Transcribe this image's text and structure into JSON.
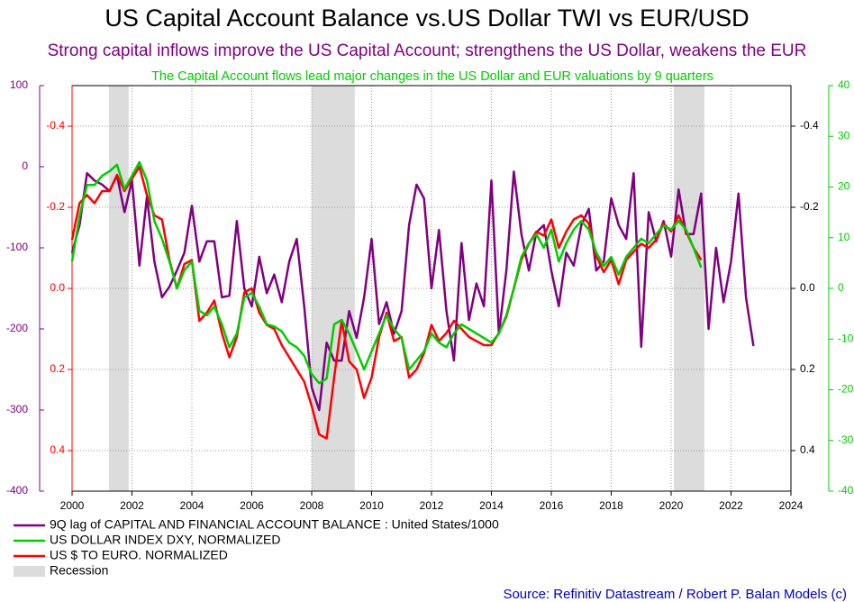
{
  "chart_data": {
    "type": "line",
    "title": "US Capital Account Balance vs.US Dollar TWI vs EUR/USD",
    "subtitle": "Strong capital inflows improve the US Capital Account; strengthens the US Dollar, weakens the EUR",
    "annotation": "The Capital Account flows lead major changes in the US Dollar and EUR valuations by 9 quarters",
    "source": "Source: Refinitiv Datastream / Robert P. Balan Models (c)",
    "xlim": [
      2000,
      2024
    ],
    "xticks": [
      2000,
      2002,
      2004,
      2006,
      2008,
      2010,
      2012,
      2014,
      2016,
      2018,
      2020,
      2022,
      2024
    ],
    "ylim": [
      -400,
      100
    ],
    "yticks": [
      -400,
      -300,
      -200,
      -100,
      0,
      100
    ],
    "y_color": "#800080",
    "y2lim": [
      0.5,
      -0.5
    ],
    "y2ticks": [
      -0.4,
      -0.2,
      {
        "value": 0,
        "label": "0.0"
      },
      0.2,
      0.4
    ],
    "y2_color": "#ff0000",
    "y3lim": [
      0.5,
      -0.5
    ],
    "y3ticks": [
      -0.4,
      -0.2,
      {
        "value": 0,
        "label": "0.0"
      },
      0.2,
      0.4
    ],
    "y3_color": "#000000",
    "y4lim": [
      -40,
      40
    ],
    "y4ticks": [
      -40,
      -30,
      -20,
      -10,
      0,
      10,
      20,
      30,
      40
    ],
    "y4_color": "#00cc00",
    "grid": true,
    "recession_label": "Recession",
    "recession_color": "#dcdcdc",
    "recessions": [
      [
        2001.23,
        2001.89
      ],
      [
        2008.0,
        2009.44
      ],
      [
        2020.09,
        2021.11
      ]
    ],
    "series": [
      {
        "name": "9Q lag of CAPITAL AND FINANCIAL ACCOUNT BALANCE : United States/1000",
        "color": "#800080",
        "axis": "y",
        "x": [
          2000,
          2000.25,
          2000.5,
          2000.75,
          2001,
          2001.25,
          2001.5,
          2001.75,
          2002,
          2002.25,
          2002.5,
          2002.75,
          2003,
          2003.25,
          2003.5,
          2003.75,
          2004,
          2004.25,
          2004.5,
          2004.75,
          2005,
          2005.25,
          2005.5,
          2005.75,
          2006,
          2006.25,
          2006.5,
          2006.75,
          2007,
          2007.25,
          2007.5,
          2007.75,
          2008,
          2008.25,
          2008.5,
          2008.75,
          2009,
          2009.25,
          2009.5,
          2009.75,
          2010,
          2010.25,
          2010.5,
          2010.75,
          2011,
          2011.25,
          2011.5,
          2011.75,
          2012,
          2012.25,
          2012.5,
          2012.75,
          2013,
          2013.25,
          2013.5,
          2013.75,
          2014,
          2014.25,
          2014.5,
          2014.75,
          2015,
          2015.25,
          2015.5,
          2015.75,
          2016,
          2016.25,
          2016.5,
          2016.75,
          2017,
          2017.25,
          2017.5,
          2017.75,
          2018,
          2018.25,
          2018.5,
          2018.75,
          2019,
          2019.25,
          2019.5,
          2019.75,
          2020,
          2020.25,
          2020.5,
          2020.75,
          2021,
          2021.25,
          2021.5,
          2021.75,
          2022,
          2022.25,
          2022.5,
          2022.75
        ],
        "values": [
          -106,
          -72,
          -8,
          -17,
          -22,
          -30,
          -11,
          -56,
          -17,
          -122,
          -37,
          -117,
          -161,
          -148,
          -128,
          -106,
          -48,
          -117,
          -92,
          -92,
          -161,
          -159,
          -67,
          -150,
          -172,
          -111,
          -156,
          -133,
          -167,
          -117,
          -89,
          -172,
          -272,
          -300,
          -217,
          -239,
          -239,
          -178,
          -211,
          -161,
          -89,
          -194,
          -167,
          -206,
          -178,
          -72,
          -22,
          -39,
          -150,
          -78,
          -178,
          -239,
          -94,
          -189,
          -144,
          -172,
          -17,
          -206,
          -128,
          -6,
          -83,
          -128,
          -81,
          -72,
          -128,
          -172,
          -106,
          -122,
          -72,
          -52,
          -128,
          -117,
          -39,
          -72,
          -89,
          -8,
          -222,
          -56,
          -92,
          -67,
          -111,
          -28,
          -83,
          -83,
          -33,
          -200,
          -100,
          -167,
          -117,
          -33,
          -161,
          -221
        ]
      },
      {
        "name": "US DOLLAR INDEX DXY, NORMALIZED",
        "color": "#00cc00",
        "axis": "y4",
        "x": [
          2000,
          2000.25,
          2000.5,
          2000.75,
          2001,
          2001.25,
          2001.5,
          2001.75,
          2002,
          2002.25,
          2002.5,
          2002.75,
          2003,
          2003.25,
          2003.5,
          2003.75,
          2004,
          2004.25,
          2004.5,
          2004.75,
          2005,
          2005.25,
          2005.5,
          2005.75,
          2006,
          2006.25,
          2006.5,
          2006.75,
          2007,
          2007.25,
          2007.5,
          2007.75,
          2008,
          2008.25,
          2008.5,
          2008.75,
          2009,
          2009.25,
          2009.5,
          2009.75,
          2010,
          2010.25,
          2010.5,
          2010.75,
          2011,
          2011.25,
          2011.5,
          2011.75,
          2012,
          2012.25,
          2012.5,
          2012.75,
          2013,
          2013.25,
          2013.5,
          2013.75,
          2014,
          2014.25,
          2014.5,
          2014.75,
          2015,
          2015.25,
          2015.5,
          2015.75,
          2016,
          2016.25,
          2016.5,
          2016.75,
          2017,
          2017.25,
          2017.5,
          2017.75,
          2018,
          2018.25,
          2018.5,
          2018.75,
          2019,
          2019.25,
          2019.5,
          2019.75,
          2020,
          2020.25,
          2020.5,
          2020.75,
          2021
        ],
        "values": [
          5.3,
          14.2,
          20.4,
          20.4,
          22.2,
          23.1,
          24.4,
          19.6,
          22.2,
          24.9,
          21.3,
          13.3,
          9.8,
          5.3,
          0,
          3.6,
          5.3,
          -4.4,
          -5.3,
          -3.6,
          -7.1,
          -11.6,
          -8.9,
          -1.8,
          -0.9,
          -3.6,
          -7.1,
          -7.5,
          -8.5,
          -10.7,
          -11.6,
          -13.3,
          -16.9,
          -18.7,
          -17.8,
          -7.1,
          -6.2,
          -8.9,
          -12.4,
          -16,
          -12.4,
          -8.9,
          -5.3,
          -8,
          -9.8,
          -16,
          -14.2,
          -12.4,
          -8.9,
          -10.7,
          -11.6,
          -8.9,
          -7.1,
          -8,
          -8.9,
          -9.8,
          -10.7,
          -8.9,
          -5.3,
          0,
          6.2,
          8.9,
          10.7,
          8,
          11.6,
          5.3,
          8.9,
          11.6,
          13.3,
          11.6,
          7.1,
          4.4,
          6.2,
          2.7,
          6.2,
          8,
          9.8,
          8.9,
          10.7,
          12.4,
          11.6,
          13.3,
          11.6,
          8,
          4.1
        ]
      },
      {
        "name": "US $ TO EURO. NORMALIZED",
        "color": "#ff0000",
        "axis": "y2",
        "x": [
          2000,
          2000.25,
          2000.5,
          2000.75,
          2001,
          2001.25,
          2001.5,
          2001.75,
          2002,
          2002.25,
          2002.5,
          2002.75,
          2003,
          2003.25,
          2003.5,
          2003.75,
          2004,
          2004.25,
          2004.5,
          2004.75,
          2005,
          2005.25,
          2005.5,
          2005.75,
          2006,
          2006.25,
          2006.5,
          2006.75,
          2007,
          2007.25,
          2007.5,
          2007.75,
          2008,
          2008.25,
          2008.5,
          2008.75,
          2009,
          2009.25,
          2009.5,
          2009.75,
          2010,
          2010.25,
          2010.5,
          2010.75,
          2011,
          2011.25,
          2011.5,
          2011.75,
          2012,
          2012.25,
          2012.5,
          2012.75,
          2013,
          2013.25,
          2013.5,
          2013.75,
          2014,
          2014.25,
          2014.5,
          2014.75,
          2015,
          2015.25,
          2015.5,
          2015.75,
          2016,
          2016.25,
          2016.5,
          2016.75,
          2017,
          2017.25,
          2017.5,
          2017.75,
          2018,
          2018.25,
          2018.5,
          2018.75,
          2019,
          2019.25,
          2019.5,
          2019.75,
          2020,
          2020.25,
          2020.5,
          2020.75,
          2021
        ],
        "values": [
          -0.12,
          -0.21,
          -0.23,
          -0.21,
          -0.24,
          -0.24,
          -0.28,
          -0.24,
          -0.27,
          -0.3,
          -0.23,
          -0.18,
          -0.17,
          -0.07,
          0,
          -0.06,
          -0.07,
          0.08,
          0.06,
          0.03,
          0.11,
          0.17,
          0.12,
          0.01,
          0,
          0.06,
          0.09,
          0.1,
          0.14,
          0.17,
          0.2,
          0.23,
          0.29,
          0.36,
          0.37,
          0.22,
          0.08,
          0.18,
          0.2,
          0.27,
          0.22,
          0.12,
          0.06,
          0.13,
          0.12,
          0.22,
          0.2,
          0.16,
          0.09,
          0.13,
          0.11,
          0.08,
          0.1,
          0.12,
          0.13,
          0.14,
          0.14,
          0.11,
          0.07,
          0,
          -0.07,
          -0.11,
          -0.14,
          -0.13,
          -0.17,
          -0.1,
          -0.14,
          -0.17,
          -0.18,
          -0.16,
          -0.08,
          -0.04,
          -0.07,
          -0.01,
          -0.07,
          -0.09,
          -0.11,
          -0.1,
          -0.12,
          -0.16,
          -0.14,
          -0.18,
          -0.14,
          -0.1,
          -0.07
        ]
      }
    ]
  }
}
